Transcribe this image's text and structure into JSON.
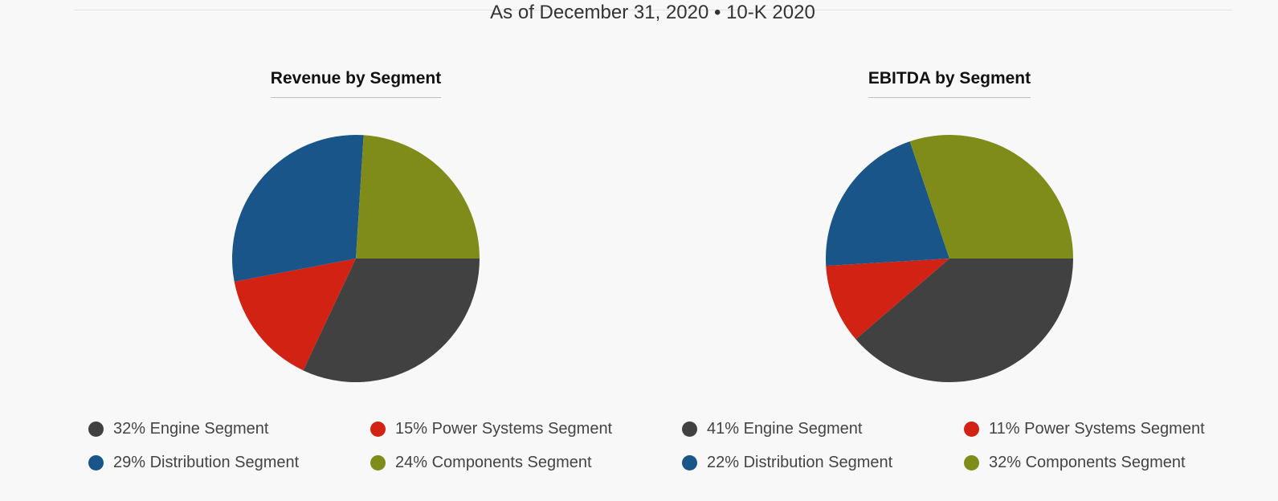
{
  "header": {
    "subtitle": "As of December 31, 2020 • 10-K 2020"
  },
  "chart_data": [
    {
      "type": "pie",
      "title": "Revenue by Segment",
      "slices": [
        {
          "label": "Engine Segment",
          "display": "32% Engine Segment",
          "value": 32,
          "color": "#414141"
        },
        {
          "label": "Power Systems Segment",
          "display": "15% Power Systems Segment",
          "value": 15,
          "color": "#d12213"
        },
        {
          "label": "Distribution Segment",
          "display": "29% Distribution Segment",
          "value": 29,
          "color": "#1a5589"
        },
        {
          "label": "Components Segment",
          "display": "24% Components Segment",
          "value": 24,
          "color": "#808c19"
        }
      ]
    },
    {
      "type": "pie",
      "title": "EBITDA by Segment",
      "slices": [
        {
          "label": "Engine Segment",
          "display": "41% Engine Segment",
          "value": 41,
          "color": "#414141"
        },
        {
          "label": "Power Systems Segment",
          "display": "11% Power Systems Segment",
          "value": 11,
          "color": "#d12213"
        },
        {
          "label": "Distribution Segment",
          "display": "22% Distribution Segment",
          "value": 22,
          "color": "#1a5589"
        },
        {
          "label": "Components Segment",
          "display": "32% Components Segment",
          "value": 32,
          "color": "#808c19"
        }
      ]
    }
  ]
}
